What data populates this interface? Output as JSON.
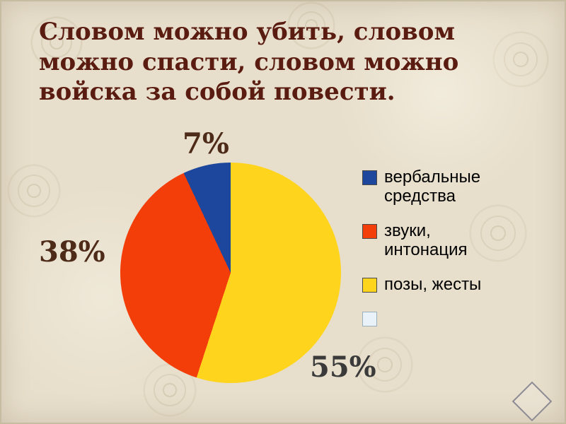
{
  "slide": {
    "title": "Словом можно убить, словом можно спасти, словом можно войска за собой повести.",
    "background_color": "#e7decb",
    "title_color": "#5a1b10"
  },
  "chart_data": {
    "type": "pie",
    "title": "",
    "slices": [
      {
        "label": "вербальные средства",
        "value": 7,
        "display": "7%",
        "color": "#1c479c"
      },
      {
        "label": "звуки, интонация",
        "value": 38,
        "display": "38%",
        "color": "#f33e09"
      },
      {
        "label": "позы, жесты",
        "value": 55,
        "display": "55%",
        "color": "#ffd41c"
      }
    ],
    "legend": {
      "position": "right",
      "items": [
        {
          "label": "вербальные средства",
          "color": "#1c479c"
        },
        {
          "label": "звуки, интонация",
          "color": "#f33e09"
        },
        {
          "label": "позы, жесты",
          "color": "#ffd41c"
        },
        {
          "label": "",
          "color": "#eaf2f9"
        }
      ]
    },
    "start_angle_deg": 0,
    "direction": "clockwise",
    "slice_draw_order": "reversed"
  },
  "decor": {
    "corner_shape": "diamond-outline"
  }
}
